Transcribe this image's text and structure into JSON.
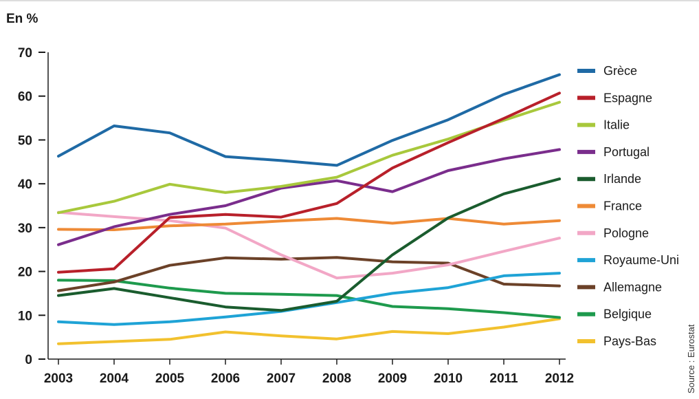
{
  "chart_data": {
    "type": "line",
    "unit_label": "En %",
    "x": [
      "2003",
      "2004",
      "2005",
      "2006",
      "2007",
      "2008",
      "2009",
      "2010",
      "2011",
      "2012"
    ],
    "ylim": [
      0,
      70
    ],
    "yticks": [
      0,
      10,
      20,
      30,
      40,
      50,
      60,
      70
    ],
    "grid": false,
    "legend_position": "right",
    "source": "Source : Eurostat",
    "series": [
      {
        "name": "Grèce",
        "color": "#1f6aa5",
        "values": [
          46.3,
          53.2,
          51.6,
          46.2,
          45.3,
          44.2,
          49.9,
          54.6,
          60.4,
          64.9
        ]
      },
      {
        "name": "Espagne",
        "color": "#b8202a",
        "values": [
          19.8,
          20.6,
          32.3,
          33.0,
          32.4,
          35.5,
          43.6,
          49.4,
          54.9,
          60.7
        ]
      },
      {
        "name": "Italie",
        "color": "#a8c83c",
        "values": [
          33.4,
          36.0,
          39.9,
          38.0,
          39.4,
          41.5,
          46.5,
          50.2,
          54.5,
          58.6
        ]
      },
      {
        "name": "Portugal",
        "color": "#7a2d8c",
        "values": [
          26.1,
          30.2,
          33.0,
          35.0,
          39.0,
          40.7,
          38.2,
          43.0,
          45.7,
          47.8
        ]
      },
      {
        "name": "Irlande",
        "color": "#1a5c2e",
        "values": [
          14.5,
          16.1,
          14.0,
          11.9,
          11.1,
          13.2,
          23.8,
          32.2,
          37.7,
          41.1
        ]
      },
      {
        "name": "France",
        "color": "#ee8a36",
        "values": [
          29.6,
          29.5,
          30.4,
          30.8,
          31.5,
          32.1,
          31.0,
          32.1,
          30.8,
          31.6
        ]
      },
      {
        "name": "Pologne",
        "color": "#f2a7c6",
        "values": [
          33.5,
          32.5,
          31.6,
          29.9,
          23.8,
          18.5,
          19.6,
          21.5,
          24.6,
          27.6
        ]
      },
      {
        "name": "Royaume-Uni",
        "color": "#1fa3d6",
        "values": [
          8.5,
          7.9,
          8.5,
          9.6,
          10.9,
          12.9,
          15.0,
          16.3,
          19.0,
          19.6
        ]
      },
      {
        "name": "Allemagne",
        "color": "#6b4128",
        "values": [
          15.6,
          17.6,
          21.4,
          23.1,
          22.8,
          23.2,
          22.2,
          21.9,
          17.1,
          16.7
        ]
      },
      {
        "name": "Belgique",
        "color": "#1e9a4d",
        "values": [
          18.0,
          17.9,
          16.2,
          15.0,
          14.8,
          14.5,
          12.0,
          11.5,
          10.6,
          9.5
        ]
      },
      {
        "name": "Pays-Bas",
        "color": "#f2c12e",
        "values": [
          3.5,
          4.0,
          4.5,
          6.2,
          5.3,
          4.6,
          6.3,
          5.8,
          7.3,
          9.2
        ]
      }
    ]
  }
}
